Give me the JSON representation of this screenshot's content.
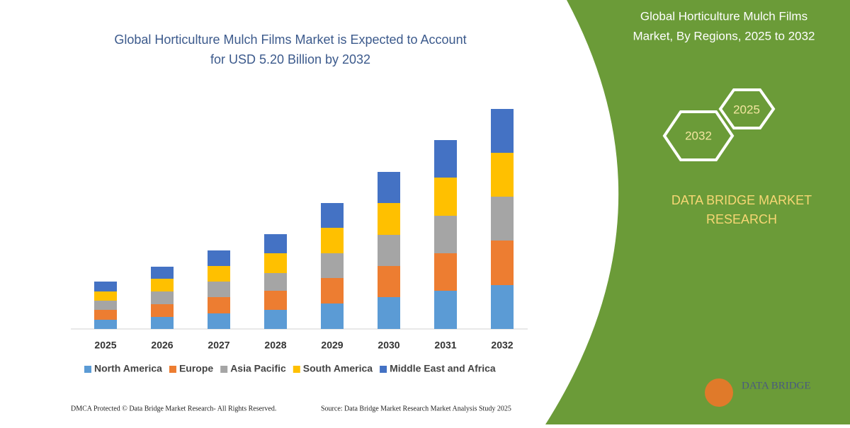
{
  "chart_data": {
    "type": "bar",
    "stacked": true,
    "title": [
      "Global Horticulture Mulch Films Market is Expected to Account",
      "for USD 5.20 Billion by 2032"
    ],
    "categories": [
      "2025",
      "2026",
      "2027",
      "2028",
      "2029",
      "2030",
      "2031",
      "2032"
    ],
    "series": [
      {
        "name": "North America",
        "color": "#5b9bd5",
        "values": [
          13,
          17,
          22,
          27,
          36,
          45,
          54,
          62
        ]
      },
      {
        "name": "Europe",
        "color": "#ed7d31",
        "values": [
          14,
          18,
          23,
          27,
          36,
          44,
          53,
          63
        ]
      },
      {
        "name": "Asia Pacific",
        "color": "#a5a5a5",
        "values": [
          13,
          18,
          22,
          25,
          35,
          44,
          53,
          62
        ]
      },
      {
        "name": "South America",
        "color": "#ffc000",
        "values": [
          13,
          18,
          22,
          28,
          36,
          45,
          54,
          62
        ]
      },
      {
        "name": "Middle East and Africa",
        "color": "#4472c4",
        "values": [
          14,
          17,
          22,
          27,
          35,
          44,
          53,
          62
        ]
      }
    ]
  },
  "panel": {
    "title": [
      "Global Horticulture Mulch Films",
      "Market, By Regions, 2025 to 2032"
    ],
    "hex_labels": [
      "2025",
      "2032"
    ],
    "brand": [
      "DATA BRIDGE MARKET",
      "RESEARCH"
    ],
    "logo": "DATA BRIDGE"
  },
  "footer": {
    "left": "DMCA Protected © Data Bridge Market Research- All Rights Reserved.",
    "right": "Source: Data Bridge Market Research Market Analysis Study 2025"
  }
}
